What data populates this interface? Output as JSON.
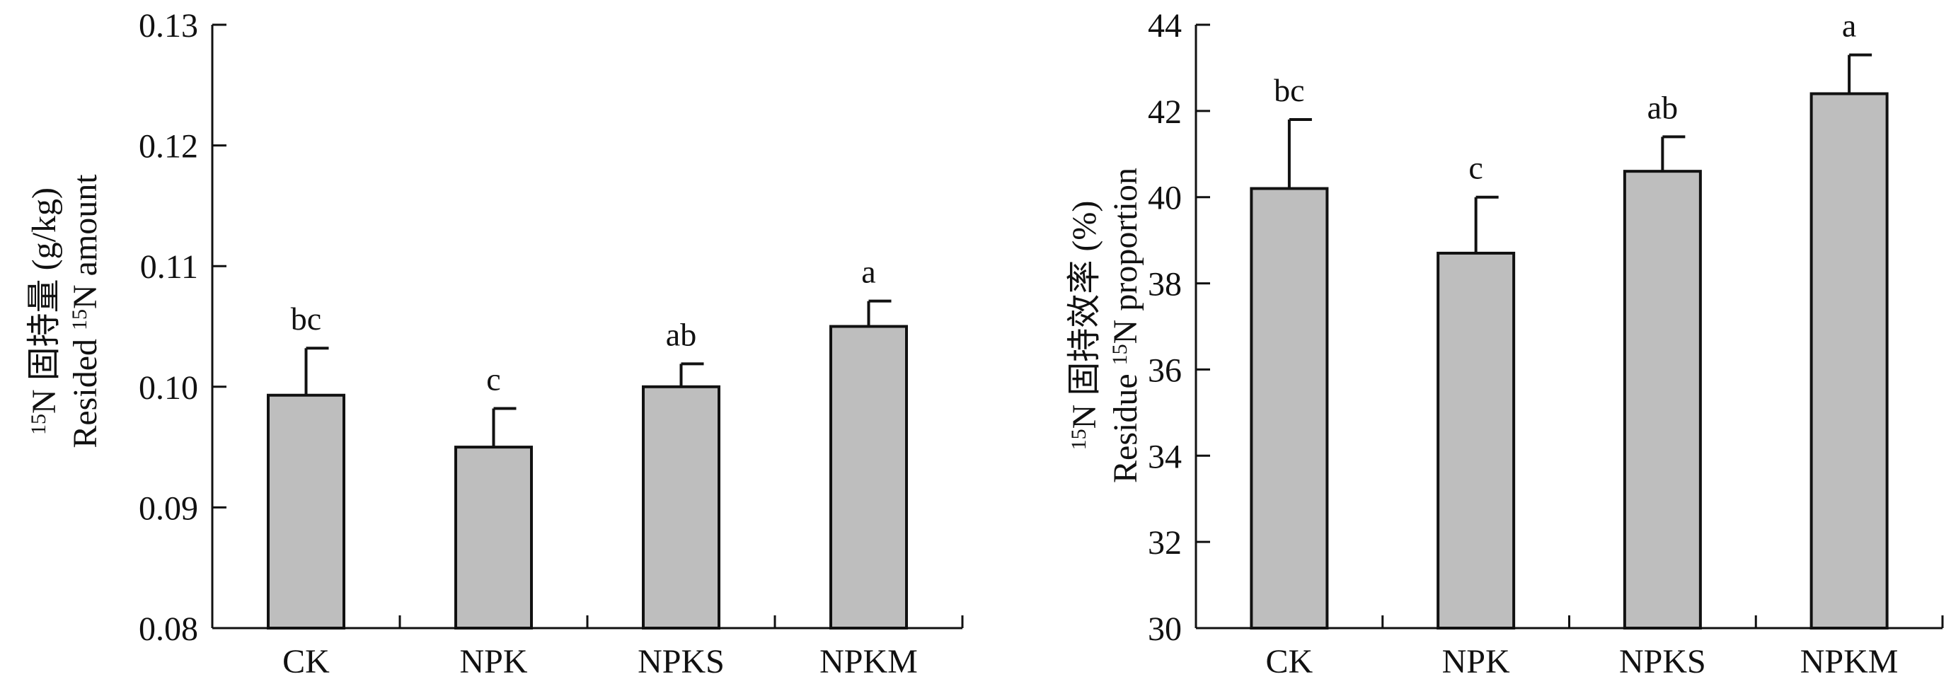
{
  "chart_data": [
    {
      "type": "bar",
      "categories": [
        "CK",
        "NPK",
        "NPKS",
        "NPKM"
      ],
      "values": [
        0.0993,
        0.095,
        0.1,
        0.105
      ],
      "errors": [
        0.0039,
        0.0032,
        0.0019,
        0.0021
      ],
      "significance": [
        "bc",
        "c",
        "ab",
        "a"
      ],
      "ylim": [
        0.08,
        0.13
      ],
      "yticks": [
        "0.08",
        "0.09",
        "0.10",
        "0.11",
        "0.12",
        "0.13"
      ],
      "ylabel_line1_sup": "15",
      "ylabel_line1": "N 固持量 (g/kg)",
      "ylabel_line2_pre": "Resided ",
      "ylabel_line2_sup": "15",
      "ylabel_line2_post": "N amount",
      "xlabel": "",
      "title": ""
    },
    {
      "type": "bar",
      "categories": [
        "CK",
        "NPK",
        "NPKS",
        "NPKM"
      ],
      "values": [
        40.2,
        38.7,
        40.6,
        42.4
      ],
      "errors": [
        1.6,
        1.3,
        0.8,
        0.9
      ],
      "significance": [
        "bc",
        "c",
        "ab",
        "a"
      ],
      "ylim": [
        30,
        44
      ],
      "yticks": [
        "30",
        "32",
        "34",
        "36",
        "38",
        "40",
        "42",
        "44"
      ],
      "ylabel_line1_sup": "15",
      "ylabel_line1": "N 固持效率 (%)",
      "ylabel_line2_pre": "Residue ",
      "ylabel_line2_sup": "15",
      "ylabel_line2_post": "N proportion",
      "xlabel": "",
      "title": ""
    }
  ],
  "colors": {
    "bar_fill": "#bebebe",
    "stroke": "#111111",
    "background": "#ffffff"
  }
}
